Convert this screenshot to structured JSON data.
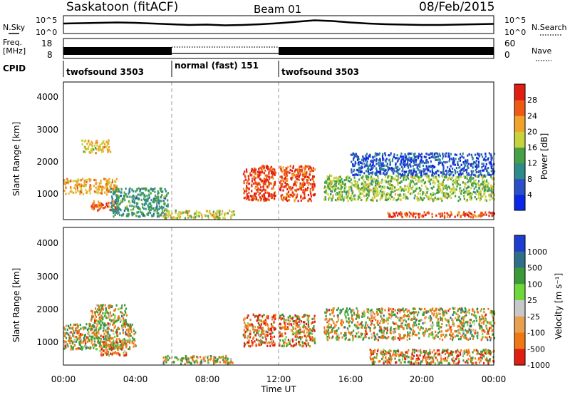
{
  "header": {
    "station": "Saskatoon (fitACF)",
    "beam": "Beam 01",
    "date": "08/Feb/2015"
  },
  "noise_panel": {
    "left_label": "N.Sky",
    "right_label": "N.Search",
    "left_ticks": [
      "10^5",
      "10^0"
    ],
    "right_ticks": [
      "10^5",
      "10^0"
    ]
  },
  "freq_panel": {
    "left_label_1": "Freq.",
    "left_label_2": "[MHz]",
    "left_ticks": [
      "18",
      "8"
    ],
    "right_label": "Nave",
    "right_ticks": [
      "60",
      "0"
    ]
  },
  "cpid_panel": {
    "label": "CPID",
    "segments": [
      {
        "name": "twofsound 3503",
        "start": 0,
        "end": 6
      },
      {
        "name": "normal (fast) 151",
        "start": 6,
        "end": 12
      },
      {
        "name": "twofsound 3503",
        "start": 12,
        "end": 24
      }
    ]
  },
  "power_panel": {
    "ylabel": "Slant Range [km]",
    "yticks": [
      "1000",
      "2000",
      "3000",
      "4000"
    ],
    "colorbar_label": "Power [dB]",
    "colorbar_ticks": [
      "4",
      "8",
      "12",
      "16",
      "20",
      "24",
      "28"
    ]
  },
  "velocity_panel": {
    "ylabel": "Slant Range [km]",
    "yticks": [
      "1000",
      "2000",
      "3000",
      "4000"
    ],
    "colorbar_label": "Velocity [m s⁻¹]",
    "colorbar_ticks": [
      "1000",
      "500",
      "100",
      "25",
      "-25",
      "-100",
      "-500",
      "-1000"
    ]
  },
  "xaxis": {
    "label": "Time UT",
    "ticks": [
      "00:00",
      "04:00",
      "08:00",
      "12:00",
      "16:00",
      "20:00",
      "00:00"
    ]
  },
  "chart_data": [
    {
      "type": "line",
      "title": "N.Sky / N.Search",
      "x": [
        0,
        1,
        2,
        3,
        4,
        5,
        6,
        7,
        8,
        9,
        10,
        11,
        12,
        13,
        14,
        15,
        16,
        17,
        18,
        19,
        20,
        21,
        22,
        23,
        24
      ],
      "series": [
        {
          "values": [
            2.8,
            2.9,
            3.0,
            3.1,
            3.0,
            2.8,
            2.6,
            2.4,
            2.5,
            2.3,
            2.4,
            2.6,
            2.9,
            3.3,
            3.7,
            3.5,
            3.1,
            2.8,
            2.6,
            2.5,
            2.4,
            2.4,
            2.5,
            2.6,
            2.7
          ]
        }
      ],
      "ylim": [
        0,
        5
      ],
      "yscale": "log10"
    },
    {
      "type": "heatmap",
      "title": "Power [dB]",
      "xlim": [
        0,
        24
      ],
      "ylim": [
        180,
        4500
      ],
      "colorbar": {
        "ticks": [
          4,
          8,
          12,
          16,
          20,
          24,
          28
        ],
        "colors": [
          "#0a26e6",
          "#2a4fc8",
          "#2f8a8a",
          "#46a046",
          "#c8d23a",
          "#f0a22a",
          "#ee5a14",
          "#e01e12"
        ]
      },
      "regions": [
        {
          "t0": 0.0,
          "t1": 3.0,
          "r0": 1000,
          "r1": 1500,
          "value": 22
        },
        {
          "t0": 1.0,
          "t1": 2.6,
          "r0": 2300,
          "r1": 2700,
          "value": 20
        },
        {
          "t0": 1.5,
          "t1": 3.0,
          "r0": 500,
          "r1": 800,
          "value": 26
        },
        {
          "t0": 2.6,
          "t1": 5.8,
          "r0": 300,
          "r1": 1200,
          "value": 12
        },
        {
          "t0": 5.5,
          "t1": 9.5,
          "r0": 250,
          "r1": 500,
          "value": 18
        },
        {
          "t0": 10.0,
          "t1": 11.8,
          "r0": 800,
          "r1": 1900,
          "value": 28
        },
        {
          "t0": 12.0,
          "t1": 14.0,
          "r0": 800,
          "r1": 1900,
          "value": 27
        },
        {
          "t0": 14.5,
          "t1": 24.0,
          "r0": 800,
          "r1": 1600,
          "value": 16
        },
        {
          "t0": 16.0,
          "t1": 24.0,
          "r0": 1600,
          "r1": 2300,
          "value": 6
        },
        {
          "t0": 18.0,
          "t1": 24.0,
          "r0": 280,
          "r1": 450,
          "value": 27
        }
      ]
    },
    {
      "type": "heatmap",
      "title": "Velocity [m s⁻¹]",
      "xlim": [
        0,
        24
      ],
      "ylim": [
        180,
        4500
      ],
      "colorbar": {
        "ticks": [
          1000,
          500,
          100,
          25,
          -25,
          -100,
          -500,
          -1000
        ],
        "colors": [
          "#1e3ed2",
          "#2f6f8a",
          "#3a9a3a",
          "#6ed83a",
          "#c8c8c8",
          "#e8a050",
          "#f07814",
          "#e01e12"
        ]
      },
      "regions": [
        {
          "t0": 0.0,
          "t1": 4.0,
          "r0": 700,
          "r1": 1500,
          "value": 0
        },
        {
          "t0": 1.5,
          "t1": 3.5,
          "r0": 1500,
          "r1": 2100,
          "value": 0
        },
        {
          "t0": 2.0,
          "t1": 3.5,
          "r0": 500,
          "r1": 1000,
          "value": -300
        },
        {
          "t0": 5.5,
          "t1": 9.5,
          "r0": 250,
          "r1": 500,
          "value": 80
        },
        {
          "t0": 10.0,
          "t1": 11.8,
          "r0": 800,
          "r1": 1800,
          "value": -300
        },
        {
          "t0": 12.0,
          "t1": 14.0,
          "r0": 800,
          "r1": 1800,
          "value": -200
        },
        {
          "t0": 14.5,
          "t1": 24.0,
          "r0": 1000,
          "r1": 2000,
          "value": 0
        },
        {
          "t0": 17.0,
          "t1": 24.0,
          "r0": 250,
          "r1": 700,
          "value": -200
        }
      ]
    }
  ]
}
